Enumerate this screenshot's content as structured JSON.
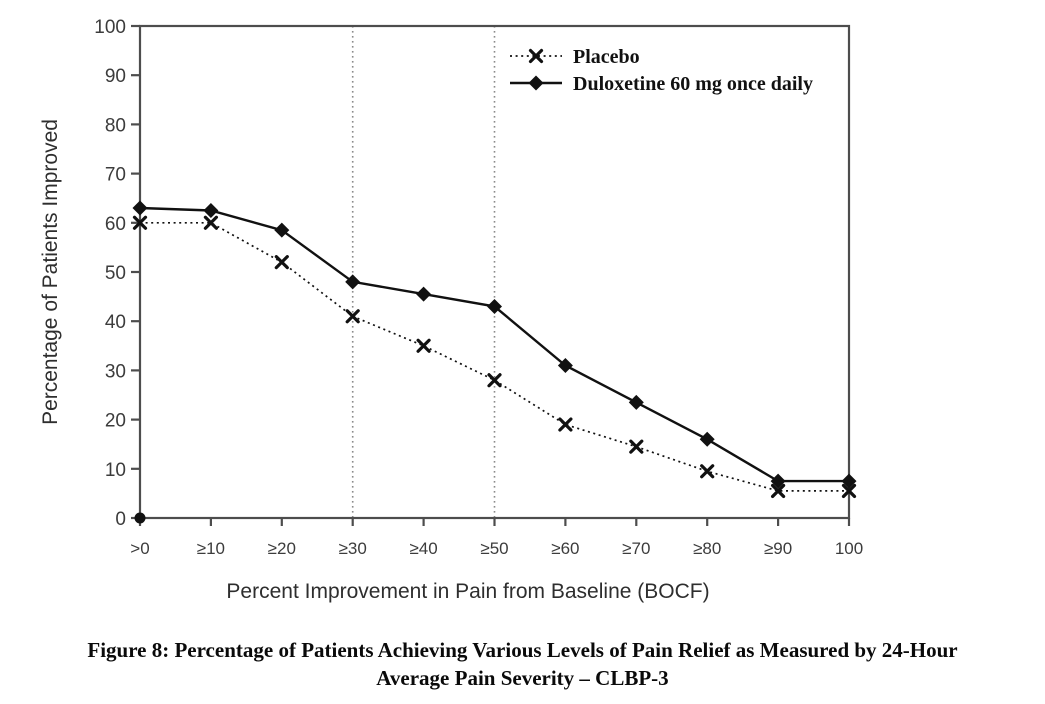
{
  "chart_data": {
    "type": "line",
    "title": "",
    "xlabel": "Percent Improvement in Pain from Baseline (BOCF)",
    "ylabel": "Percentage of Patients Improved",
    "categories": [
      ">0",
      "≥10",
      "≥20",
      "≥30",
      "≥40",
      "≥50",
      "≥60",
      "≥70",
      "≥80",
      "≥90",
      "100"
    ],
    "yticks": [
      0,
      10,
      20,
      30,
      40,
      50,
      60,
      70,
      80,
      90,
      100
    ],
    "ylim": [
      0,
      100
    ],
    "grid": false,
    "legend_position": "top-right-inside",
    "reference_line_categories": [
      "≥30",
      "≥50"
    ],
    "reference_line_indices": [
      3,
      5
    ],
    "origin_point_value": 0,
    "series": [
      {
        "name": "Placebo",
        "marker": "x",
        "line_style": "dotted",
        "values": [
          60,
          60,
          52,
          41,
          35,
          28,
          19,
          14.5,
          9.5,
          5.5,
          5.5
        ]
      },
      {
        "name": "Duloxetine 60 mg once daily",
        "marker": "diamond",
        "line_style": "solid",
        "values": [
          63,
          62.5,
          58.5,
          48,
          45.5,
          43,
          31,
          23.5,
          16,
          7.5,
          7.5
        ]
      }
    ],
    "colors": {
      "line": "#111111",
      "frame": "#4d4d4d",
      "tick_label": "#3c3c3c",
      "reference": "#8a8a8a"
    }
  },
  "caption": {
    "line1": "Figure 8: Percentage of Patients Achieving Various Levels of Pain Relief as Measured by 24-Hour",
    "line2": "Average Pain Severity – CLBP-3"
  }
}
